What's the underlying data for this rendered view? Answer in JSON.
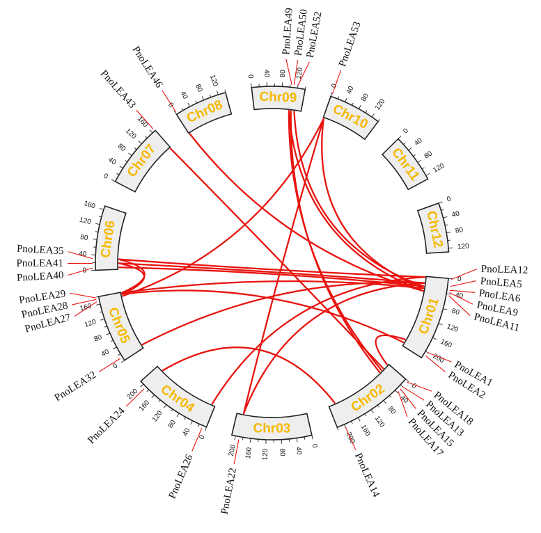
{
  "diagram": {
    "type": "circos",
    "colors": {
      "link": "#e8140f",
      "chromosome_label": "#f5b800",
      "chromosome_fill": "#eeeeee",
      "outline": "#222222"
    },
    "chromosomes": [
      {
        "name": "Chr01",
        "length": 220,
        "tick_step": 40,
        "label_every": 40
      },
      {
        "name": "Chr02",
        "length": 220,
        "tick_step": 20,
        "label_every": 40
      },
      {
        "name": "Chr03",
        "length": 210,
        "tick_step": 20,
        "label_every": 40
      },
      {
        "name": "Chr04",
        "length": 210,
        "tick_step": 20,
        "label_every": 40
      },
      {
        "name": "Chr05",
        "length": 180,
        "tick_step": 20,
        "label_every": 40
      },
      {
        "name": "Chr06",
        "length": 170,
        "tick_step": 20,
        "label_every": 40
      },
      {
        "name": "Chr07",
        "length": 170,
        "tick_step": 20,
        "label_every": 40
      },
      {
        "name": "Chr08",
        "length": 140,
        "tick_step": 20,
        "label_every": 40
      },
      {
        "name": "Chr09",
        "length": 140,
        "tick_step": 20,
        "label_every": 40
      },
      {
        "name": "Chr10",
        "length": 140,
        "tick_step": 20,
        "label_every": 40
      },
      {
        "name": "Chr11",
        "length": 130,
        "tick_step": 20,
        "label_every": 40
      },
      {
        "name": "Chr12",
        "length": 130,
        "tick_step": 20,
        "label_every": 40
      }
    ],
    "genes": [
      {
        "name": "PnoLEA12",
        "chr": "Chr01",
        "pos": 2
      },
      {
        "name": "PnoLEA5",
        "chr": "Chr01",
        "pos": 20
      },
      {
        "name": "PnoLEA6",
        "chr": "Chr01",
        "pos": 30
      },
      {
        "name": "PnoLEA9",
        "chr": "Chr01",
        "pos": 36
      },
      {
        "name": "PnoLEA11",
        "chr": "Chr01",
        "pos": 44
      },
      {
        "name": "PnoLEA1",
        "chr": "Chr01",
        "pos": 200
      },
      {
        "name": "PnoLEA2",
        "chr": "Chr01",
        "pos": 210
      },
      {
        "name": "PnoLEA18",
        "chr": "Chr02",
        "pos": 4
      },
      {
        "name": "PnoLEA13",
        "chr": "Chr02",
        "pos": 20
      },
      {
        "name": "PnoLEA15",
        "chr": "Chr02",
        "pos": 28
      },
      {
        "name": "PnoLEA17",
        "chr": "Chr02",
        "pos": 36
      },
      {
        "name": "PnoLEA14",
        "chr": "Chr02",
        "pos": 200
      },
      {
        "name": "PnoLEA22",
        "chr": "Chr03",
        "pos": 190
      },
      {
        "name": "PnoLEA26",
        "chr": "Chr04",
        "pos": 10
      },
      {
        "name": "PnoLEA24",
        "chr": "Chr04",
        "pos": 190
      },
      {
        "name": "PnoLEA32",
        "chr": "Chr05",
        "pos": 10
      },
      {
        "name": "PnoLEA27",
        "chr": "Chr05",
        "pos": 168
      },
      {
        "name": "PnoLEA28",
        "chr": "Chr05",
        "pos": 174
      },
      {
        "name": "PnoLEA29",
        "chr": "Chr05",
        "pos": 178
      },
      {
        "name": "PnoLEA40",
        "chr": "Chr06",
        "pos": 6
      },
      {
        "name": "PnoLEA41",
        "chr": "Chr06",
        "pos": 18
      },
      {
        "name": "PnoLEA35",
        "chr": "Chr06",
        "pos": 30
      },
      {
        "name": "PnoLEA43",
        "chr": "Chr07",
        "pos": 168
      },
      {
        "name": "PnoLEA46",
        "chr": "Chr08",
        "pos": 2
      },
      {
        "name": "PnoLEA49",
        "chr": "Chr09",
        "pos": 104
      },
      {
        "name": "PnoLEA50",
        "chr": "Chr09",
        "pos": 110
      },
      {
        "name": "PnoLEA52",
        "chr": "Chr09",
        "pos": 120
      },
      {
        "name": "PnoLEA53",
        "chr": "Chr10",
        "pos": 2
      }
    ],
    "links": [
      [
        "PnoLEA12",
        "PnoLEA35"
      ],
      [
        "PnoLEA5",
        "PnoLEA41"
      ],
      [
        "PnoLEA6",
        "PnoLEA40"
      ],
      [
        "PnoLEA9",
        "PnoLEA29"
      ],
      [
        "PnoLEA11",
        "PnoLEA49"
      ],
      [
        "PnoLEA6",
        "PnoLEA52"
      ],
      [
        "PnoLEA9",
        "PnoLEA53"
      ],
      [
        "PnoLEA11",
        "PnoLEA46"
      ],
      [
        "PnoLEA5",
        "PnoLEA22"
      ],
      [
        "PnoLEA12",
        "PnoLEA26"
      ],
      [
        "PnoLEA2",
        "PnoLEA28"
      ],
      [
        "PnoLEA1",
        "PnoLEA18"
      ],
      [
        "PnoLEA13",
        "PnoLEA43"
      ],
      [
        "PnoLEA15",
        "PnoLEA49"
      ],
      [
        "PnoLEA14",
        "PnoLEA24"
      ],
      [
        "PnoLEA17",
        "PnoLEA50"
      ],
      [
        "PnoLEA53",
        "PnoLEA27"
      ],
      [
        "PnoLEA53",
        "PnoLEA22"
      ],
      [
        "PnoLEA32",
        "PnoLEA5"
      ],
      [
        "PnoLEA29",
        "PnoLEA35"
      ],
      [
        "PnoLEA28",
        "PnoLEA41"
      ]
    ]
  }
}
